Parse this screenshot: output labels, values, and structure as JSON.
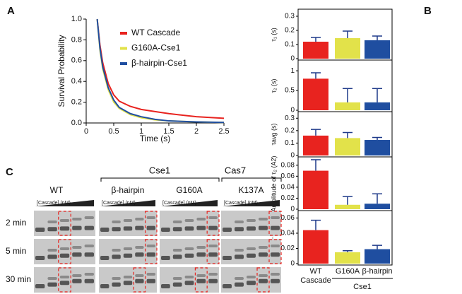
{
  "panel_labels": [
    "A",
    "B",
    "C"
  ],
  "chart_data": [
    {
      "type": "line",
      "xlabel": "Time (s)",
      "ylabel": "Survival Probability",
      "x": [
        0.2,
        0.25,
        0.3,
        0.4,
        0.5,
        0.6,
        0.8,
        1.0,
        1.25,
        1.5,
        2.0,
        2.5
      ],
      "series": [
        {
          "name": "WT Cascade",
          "color": "#e8231f",
          "values": [
            1.0,
            0.75,
            0.58,
            0.38,
            0.27,
            0.21,
            0.16,
            0.13,
            0.11,
            0.09,
            0.06,
            0.045
          ]
        },
        {
          "name": "G160A-Cse1",
          "color": "#e2e24a",
          "values": [
            1.0,
            0.7,
            0.52,
            0.32,
            0.2,
            0.14,
            0.08,
            0.05,
            0.03,
            0.02,
            0.01,
            0.005
          ]
        },
        {
          "name": "β-hairpin-Cse1",
          "color": "#1f4ea0",
          "values": [
            1.0,
            0.72,
            0.54,
            0.34,
            0.22,
            0.15,
            0.09,
            0.06,
            0.035,
            0.02,
            0.01,
            0.005
          ]
        }
      ],
      "xlim": [
        0,
        2.5
      ],
      "xticks": [
        0,
        0.5,
        1,
        1.5,
        2,
        2.5
      ],
      "ylim": [
        0,
        1
      ],
      "yticks": [
        {
          "value": 0,
          "label": "0.0"
        },
        0.2,
        0.4,
        0.6,
        0.8,
        {
          "value": 1,
          "label": "1.0"
        }
      ]
    },
    {
      "type": "bar",
      "ylabel": "τ₁ (s)",
      "values": [
        0.12,
        0.145,
        0.13
      ],
      "errors": [
        0.03,
        0.05,
        0.03
      ],
      "colors": [
        "#e8231f",
        "#e2e24a",
        "#1f4ea0"
      ],
      "ylim": [
        0,
        0.33
      ],
      "yticks": [
        0,
        0.1,
        0.2,
        0.3
      ]
    },
    {
      "type": "bar",
      "ylabel": "τ₂ (s)",
      "values": [
        0.8,
        0.2,
        0.2
      ],
      "errors": [
        0.15,
        0.35,
        0.35
      ],
      "colors": [
        "#e8231f",
        "#e2e24a",
        "#1f4ea0"
      ],
      "ylim": [
        0,
        1.2
      ],
      "yticks": [
        0,
        0.5,
        1
      ]
    },
    {
      "type": "bar",
      "ylabel": "τavg (s)",
      "values": [
        0.16,
        0.14,
        0.125
      ],
      "errors": [
        0.05,
        0.045,
        0.02
      ],
      "colors": [
        "#e8231f",
        "#e2e24a",
        "#1f4ea0"
      ],
      "ylim": [
        0,
        0.33
      ],
      "yticks": [
        0,
        0.1,
        0.2,
        0.3
      ]
    },
    {
      "type": "bar",
      "ylabel": "Amplitude of τ₂ (A2)",
      "values": [
        0.07,
        0.008,
        0.01
      ],
      "errors": [
        0.02,
        0.015,
        0.018
      ],
      "colors": [
        "#e8231f",
        "#e2e24a",
        "#1f4ea0"
      ],
      "ylim": [
        0,
        0.09
      ],
      "yticks": [
        0,
        0.02,
        0.04,
        0.06,
        0.08
      ]
    },
    {
      "type": "bar",
      "ylabel": "kₒₙ(nM⁻¹sec⁻¹)",
      "values": [
        0.044,
        0.015,
        0.019
      ],
      "errors": [
        0.013,
        0.002,
        0.005
      ],
      "colors": [
        "#e8231f",
        "#e2e24a",
        "#1f4ea0"
      ],
      "ylim": [
        0,
        0.066
      ],
      "yticks": [
        0,
        0.02,
        0.04,
        0.06
      ],
      "categories": [
        "WT Cascade",
        "G160A",
        "β-hairpin"
      ],
      "group_label": "Cse1"
    }
  ],
  "gel": {
    "column_labels": [
      "WT",
      "β-hairpin",
      "G160A",
      "K137A"
    ],
    "group_labels": [
      "Cse1",
      "Cas7"
    ],
    "concentration_label": "[Cascade] (nM)",
    "row_labels": [
      "2 min",
      "5 min",
      "30 min"
    ]
  }
}
